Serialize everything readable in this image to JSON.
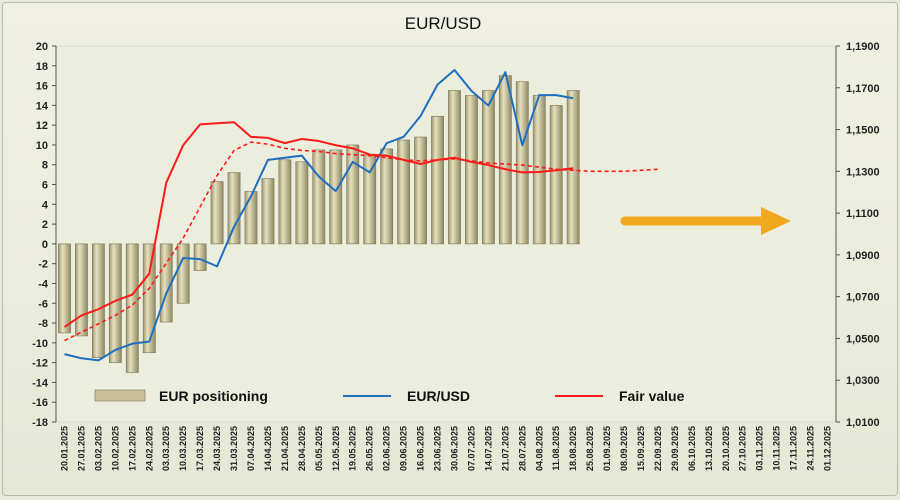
{
  "chart_data": {
    "type": "bar+line",
    "title": "EUR/USD",
    "left_axis": {
      "range": [
        -18,
        20
      ],
      "ticks": [
        20,
        18,
        16,
        14,
        12,
        10,
        8,
        6,
        4,
        2,
        0,
        -2,
        -4,
        -6,
        -8,
        -10,
        -12,
        -14,
        -16,
        -18
      ]
    },
    "right_axis": {
      "range": [
        1.01,
        1.19
      ],
      "ticks": [
        "1,1900",
        "1,1700",
        "1,1500",
        "1,1300",
        "1,1100",
        "1,0900",
        "1,0700",
        "1,0500",
        "1,0300",
        "1,0100"
      ],
      "tick_values": [
        1.19,
        1.17,
        1.15,
        1.13,
        1.11,
        1.09,
        1.07,
        1.05,
        1.03,
        1.01
      ]
    },
    "x_labels": [
      "20.01.2025",
      "27.01.2025",
      "03.02.2025",
      "10.02.2025",
      "17.02.2025",
      "24.02.2025",
      "03.03.2025",
      "10.03.2025",
      "17.03.2025",
      "24.03.2025",
      "31.03.2025",
      "07.04.2025",
      "14.04.2025",
      "21.04.2025",
      "28.04.2025",
      "05.05.2025",
      "12.05.2025",
      "19.05.2025",
      "26.05.2025",
      "02.06.2025",
      "09.06.2025",
      "16.06.2025",
      "23.06.2025",
      "30.06.2025",
      "07.07.2025",
      "14.07.2025",
      "21.07.2025",
      "28.07.2025",
      "04.08.2025",
      "11.08.2025",
      "18.08.2025",
      "25.08.2025",
      "01.09.2025",
      "08.09.2025",
      "15.09.2025",
      "22.09.2025",
      "29.09.2025",
      "06.10.2025",
      "13.10.2025",
      "20.10.2025",
      "27.10.2025",
      "03.11.2025",
      "10.11.2025",
      "17.11.2025",
      "24.11.2025",
      "01.12.2025"
    ],
    "series": [
      {
        "name": "EUR positioning",
        "kind": "bar",
        "axis": "left",
        "color": "#c8c098",
        "values": [
          -9.0,
          -9.3,
          -11.5,
          -12.0,
          -13.0,
          -11.0,
          -7.9,
          -6.0,
          -2.7,
          6.3,
          7.2,
          5.3,
          6.6,
          8.5,
          8.3,
          9.5,
          9.5,
          10.0,
          9.0,
          9.6,
          10.5,
          10.8,
          12.9,
          15.5,
          15.0,
          15.5,
          17.0,
          16.4,
          15.0,
          14.0,
          15.5
        ]
      },
      {
        "name": "EUR/USD",
        "kind": "line",
        "axis": "right",
        "color": "#1f6fc0",
        "values": [
          1.0425,
          1.0405,
          1.0395,
          1.0445,
          1.0475,
          1.0485,
          1.0715,
          1.0885,
          1.088,
          1.0845,
          1.1035,
          1.118,
          1.1355,
          1.1365,
          1.1375,
          1.1275,
          1.1205,
          1.1345,
          1.1295,
          1.1435,
          1.1465,
          1.1565,
          1.1715,
          1.1785,
          1.1685,
          1.1615,
          1.1775,
          1.1425,
          1.1665,
          1.1665,
          1.165
        ]
      },
      {
        "name": "Fair value",
        "kind": "line",
        "axis": "right",
        "color": "#ff1a1a",
        "values": [
          1.0555,
          1.061,
          1.064,
          1.068,
          1.071,
          1.081,
          1.1245,
          1.1425,
          1.1525,
          1.153,
          1.1535,
          1.1465,
          1.146,
          1.1435,
          1.1455,
          1.1445,
          1.1425,
          1.141,
          1.138,
          1.1375,
          1.1355,
          1.1335,
          1.1355,
          1.1365,
          1.1345,
          1.133,
          1.131,
          1.1295,
          1.1297,
          1.1305,
          1.1315
        ]
      },
      {
        "name": "Fair value",
        "kind": "dashed-line",
        "legend": false,
        "axis": "right",
        "color": "#ff1a1a",
        "values": [
          1.049,
          1.053,
          1.057,
          1.061,
          1.066,
          1.074,
          1.086,
          1.098,
          1.113,
          1.128,
          1.14,
          1.144,
          1.143,
          1.141,
          1.14,
          1.1395,
          1.1385,
          1.138,
          1.1375,
          1.1365,
          1.1355,
          1.135,
          1.1355,
          1.136,
          1.135,
          1.134,
          1.1335,
          1.133,
          1.132,
          1.131,
          1.1305,
          1.13,
          1.13,
          1.13,
          1.1305,
          1.131
        ]
      }
    ],
    "legend_entries": [
      "EUR positioning",
      "EUR/USD",
      "Fair value"
    ],
    "legend_placement": "bottom-inside",
    "arrow": {
      "color": "#f0a81c",
      "direction": "right"
    },
    "grid": false
  }
}
